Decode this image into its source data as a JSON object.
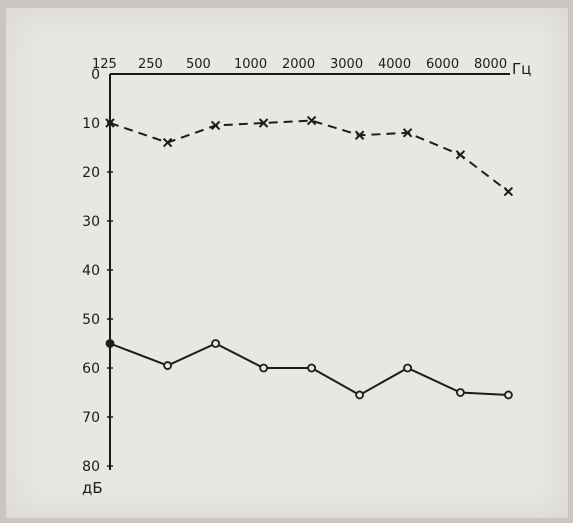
{
  "chart_data": {
    "type": "line",
    "x_ticks": [
      "125",
      "250",
      "500",
      "1000",
      "2000",
      "3000",
      "4000",
      "6000",
      "8000"
    ],
    "x_unit": "Гц",
    "y_ticks": [
      "0",
      "10",
      "20",
      "30",
      "40",
      "50",
      "60",
      "70",
      "80"
    ],
    "y_unit": "дБ",
    "ylim": [
      0,
      80
    ],
    "y_inverted": true,
    "grid": false,
    "series": [
      {
        "style": "dashed",
        "marker": "x",
        "x": [
          0.0,
          1.2,
          2.2,
          3.2,
          4.2,
          5.2,
          6.2,
          7.3,
          8.3
        ],
        "values": [
          10,
          14,
          10.5,
          10,
          9.5,
          12.5,
          12,
          16.5,
          24
        ]
      },
      {
        "style": "solid",
        "marker": "o",
        "x": [
          0.0,
          1.2,
          2.2,
          3.2,
          4.2,
          5.2,
          6.2,
          7.3,
          8.3
        ],
        "values": [
          55,
          59.5,
          55,
          60,
          60,
          65.5,
          60,
          65,
          65.5
        ]
      }
    ]
  },
  "colors": {
    "ink": "#1c1c1c",
    "paper": "#e9e7e4"
  }
}
